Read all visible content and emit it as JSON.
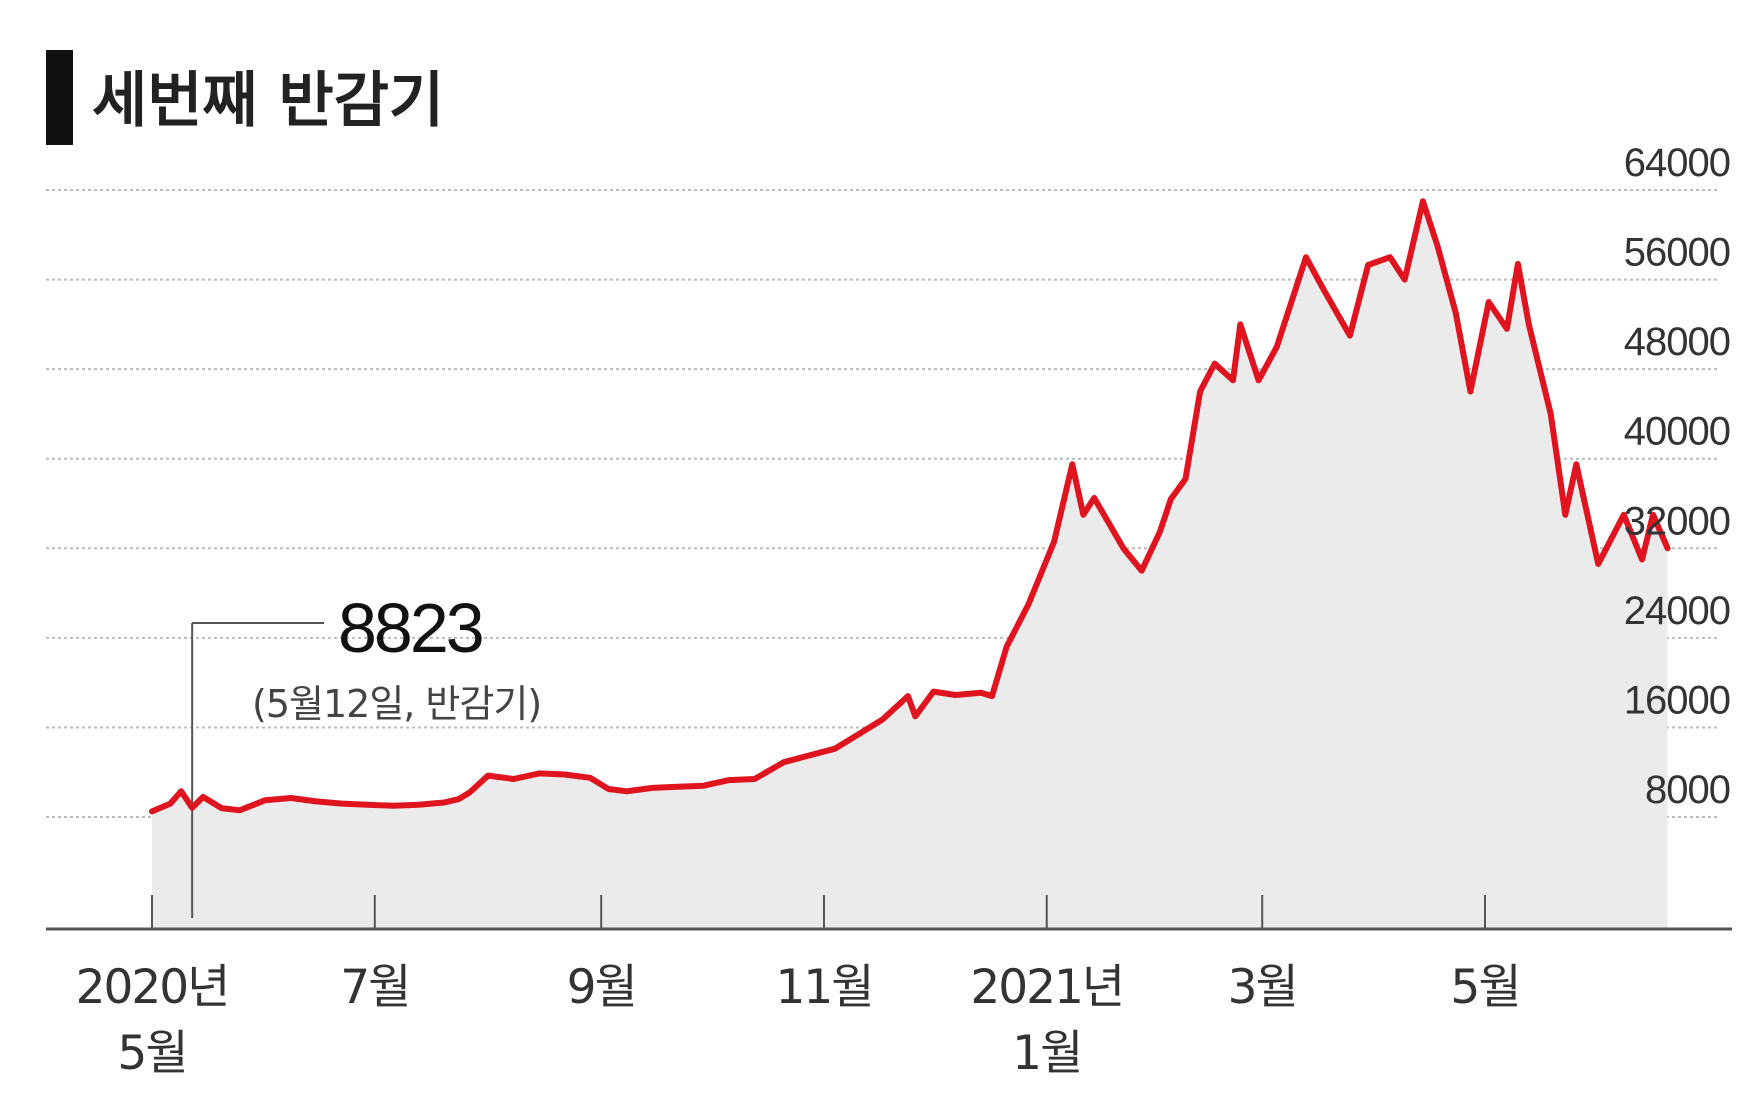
{
  "chart_data": {
    "type": "area",
    "title": "세번째 반감기",
    "xlabel": "",
    "ylabel": "",
    "ylim": [
      -2000,
      64000
    ],
    "yticks": [
      8000,
      16000,
      24000,
      32000,
      40000,
      48000,
      56000,
      64000
    ],
    "ytick_labels": [
      "8000",
      "16000",
      "24000",
      "32000",
      "40000",
      "48000",
      "56000",
      "64000"
    ],
    "grid": true,
    "xlim": [
      "2020-04-30",
      "2021-06-22"
    ],
    "xticks": [
      {
        "date": "2020-05-01",
        "lines": [
          "2020년",
          "5월"
        ]
      },
      {
        "date": "2020-07-01",
        "lines": [
          "7월"
        ]
      },
      {
        "date": "2020-09-01",
        "lines": [
          "9월"
        ]
      },
      {
        "date": "2020-11-01",
        "lines": [
          "11월"
        ]
      },
      {
        "date": "2021-01-01",
        "lines": [
          "2021년",
          "1월"
        ]
      },
      {
        "date": "2021-03-01",
        "lines": [
          "3월"
        ]
      },
      {
        "date": "2021-05-01",
        "lines": [
          "5월"
        ]
      }
    ],
    "colors": {
      "line": "#e0141e",
      "area": "#ebebeb",
      "grid": "#bbbbbb",
      "axis": "#555555",
      "title_bar": "#111111"
    },
    "annotation": {
      "date": "2020-05-12",
      "value": "8823",
      "note": "(5월12일, 반감기)"
    },
    "series": [
      {
        "name": "",
        "x": [
          "2020-05-01",
          "2020-05-06",
          "2020-05-09",
          "2020-05-12",
          "2020-05-15",
          "2020-05-20",
          "2020-05-25",
          "2020-06-01",
          "2020-06-08",
          "2020-06-15",
          "2020-06-22",
          "2020-06-29",
          "2020-07-06",
          "2020-07-13",
          "2020-07-20",
          "2020-07-24",
          "2020-07-27",
          "2020-08-01",
          "2020-08-08",
          "2020-08-15",
          "2020-08-22",
          "2020-08-29",
          "2020-09-03",
          "2020-09-08",
          "2020-09-15",
          "2020-09-22",
          "2020-09-29",
          "2020-10-06",
          "2020-10-13",
          "2020-10-21",
          "2020-10-28",
          "2020-11-04",
          "2020-11-10",
          "2020-11-17",
          "2020-11-24",
          "2020-11-26",
          "2020-12-01",
          "2020-12-07",
          "2020-12-14",
          "2020-12-17",
          "2020-12-21",
          "2020-12-27",
          "2021-01-03",
          "2021-01-08",
          "2021-01-11",
          "2021-01-14",
          "2021-01-22",
          "2021-01-27",
          "2021-02-01",
          "2021-02-04",
          "2021-02-08",
          "2021-02-12",
          "2021-02-16",
          "2021-02-21",
          "2021-02-23",
          "2021-02-28",
          "2021-03-05",
          "2021-03-13",
          "2021-03-18",
          "2021-03-25",
          "2021-03-30",
          "2021-04-05",
          "2021-04-09",
          "2021-04-14",
          "2021-04-18",
          "2021-04-23",
          "2021-04-27",
          "2021-05-02",
          "2021-05-07",
          "2021-05-10",
          "2021-05-13",
          "2021-05-19",
          "2021-05-23",
          "2021-05-26",
          "2021-06-01",
          "2021-06-08",
          "2021-06-13",
          "2021-06-16",
          "2021-06-20"
        ],
        "values": [
          8500,
          9200,
          10300,
          8823,
          9800,
          8800,
          8600,
          9500,
          9700,
          9400,
          9200,
          9100,
          9000,
          9100,
          9300,
          9600,
          10200,
          11700,
          11400,
          11900,
          11800,
          11500,
          10500,
          10300,
          10600,
          10700,
          10800,
          11300,
          11400,
          12900,
          13500,
          14100,
          15300,
          16700,
          18800,
          17000,
          19200,
          18900,
          19100,
          18800,
          23200,
          27000,
          32600,
          39500,
          35000,
          36500,
          32000,
          30000,
          33500,
          36400,
          38200,
          46000,
          48500,
          47000,
          52000,
          47000,
          50000,
          58000,
          55000,
          51000,
          57300,
          58000,
          56000,
          63000,
          59000,
          53000,
          46000,
          54000,
          51600,
          57400,
          52000,
          44000,
          35000,
          39500,
          30600,
          35000,
          31000,
          35000,
          32000
        ]
      }
    ]
  }
}
